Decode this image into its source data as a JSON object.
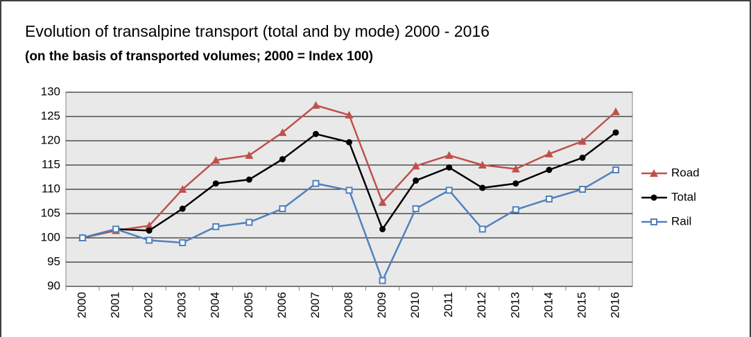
{
  "chart_data": {
    "type": "line",
    "title": "Evolution of transalpine transport (total and by mode) 2000 - 2016",
    "subtitle": "(on the basis of transported volumes; 2000 = Index 100)",
    "categories": [
      "2000",
      "2001",
      "2002",
      "2003",
      "2004",
      "2005",
      "2006",
      "2007",
      "2008",
      "2009",
      "2010",
      "2011",
      "2012",
      "2013",
      "2014",
      "2015",
      "2016"
    ],
    "series": [
      {
        "name": "Road",
        "color": "#c0504d",
        "marker": "triangle",
        "values": [
          100,
          101.5,
          102.5,
          110,
          116,
          117,
          121.7,
          127.3,
          125.3,
          107.3,
          114.8,
          117,
          115,
          114.2,
          117.3,
          119.9,
          126
        ]
      },
      {
        "name": "Total",
        "color": "#000000",
        "marker": "circle",
        "values": [
          100,
          101.8,
          101.5,
          106,
          111.2,
          112,
          116.2,
          121.4,
          119.7,
          101.8,
          111.8,
          114.5,
          110.3,
          111.2,
          114,
          116.5,
          121.7
        ]
      },
      {
        "name": "Rail",
        "color": "#4f81bd",
        "marker": "square",
        "values": [
          100,
          101.8,
          99.5,
          99,
          102.3,
          103.2,
          106,
          111.2,
          109.8,
          91.2,
          106,
          109.8,
          101.8,
          105.8,
          108,
          110,
          114
        ]
      }
    ],
    "ylim": [
      90,
      130
    ],
    "yticks": [
      90,
      95,
      100,
      105,
      110,
      115,
      120,
      125,
      130
    ],
    "grid": true,
    "legend": "right"
  }
}
